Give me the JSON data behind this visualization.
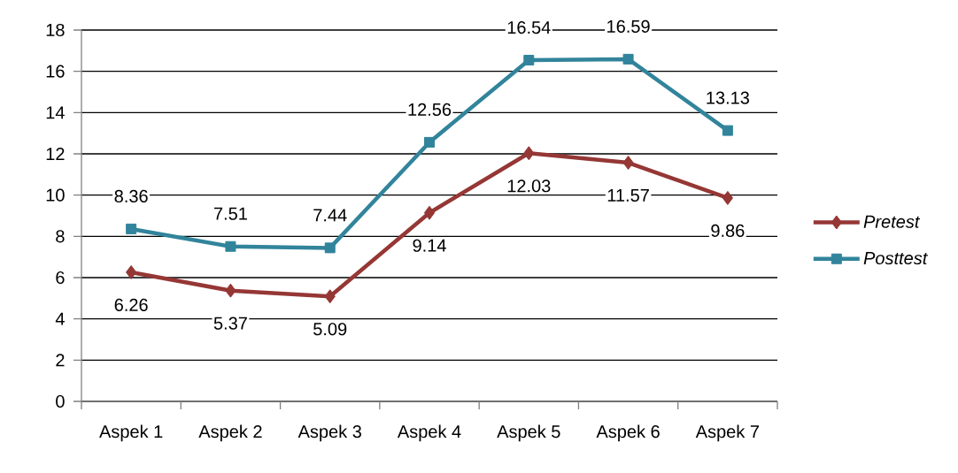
{
  "chart_data": {
    "type": "line",
    "categories": [
      "Aspek 1",
      "Aspek 2",
      "Aspek 3",
      "Aspek 4",
      "Aspek 5",
      "Aspek 6",
      "Aspek 7"
    ],
    "series": [
      {
        "name": "Pretest",
        "color": "#953735",
        "marker": "diamond",
        "values": [
          6.26,
          5.37,
          5.09,
          9.14,
          12.03,
          11.57,
          9.86
        ]
      },
      {
        "name": "Posttest",
        "color": "#31849b",
        "marker": "square",
        "values": [
          8.36,
          7.51,
          7.44,
          12.56,
          16.54,
          16.59,
          13.13
        ]
      }
    ],
    "ylim": [
      0,
      18
    ],
    "yticks": [
      0,
      2,
      4,
      6,
      8,
      10,
      12,
      14,
      16,
      18
    ],
    "grid": "y",
    "legend": "right",
    "line_style": "solid",
    "data_labels": true
  }
}
